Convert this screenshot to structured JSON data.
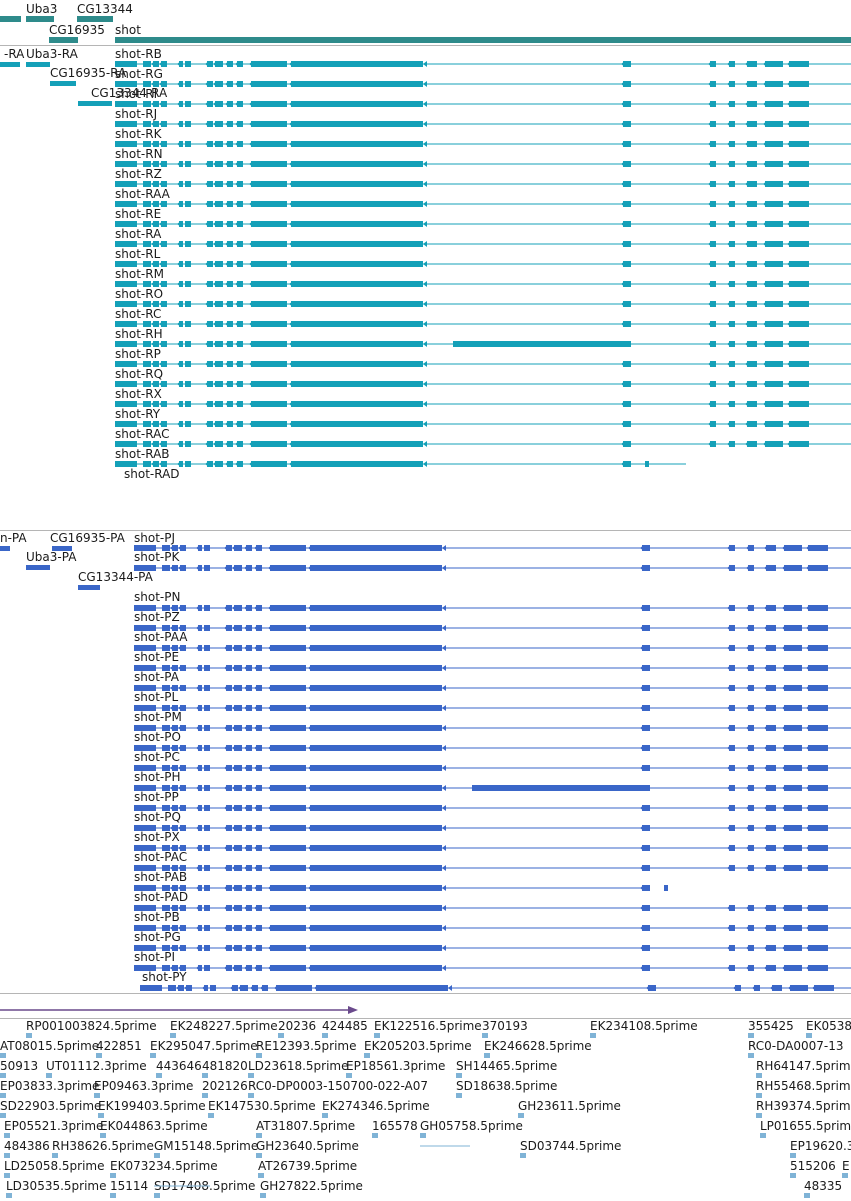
{
  "colors": {
    "gene": "#2e8b8b",
    "rna": "#14a0b8",
    "protein": "#3a66c8",
    "est": "#7fb3d6",
    "scale": "#6a4a8c"
  },
  "gene_track": {
    "genes": [
      {
        "label": ""
      },
      {
        "label": "Uba3"
      },
      {
        "label": "CG13344"
      },
      {
        "label": "CG16935"
      },
      {
        "label": "shot"
      }
    ]
  },
  "rna_track": {
    "small_labels": [
      "-RA",
      "Uba3-RA",
      "CG16935-RA",
      "CG13344-RA"
    ],
    "shot_labels": [
      "shot-RB",
      "shot-RG",
      "shot-RI",
      "shot-RJ",
      "shot-RK",
      "shot-RN",
      "shot-RZ",
      "shot-RAA",
      "shot-RE",
      "shot-RA",
      "shot-RL",
      "shot-RM",
      "shot-RO",
      "shot-RC",
      "shot-RH",
      "shot-RP",
      "shot-RQ",
      "shot-RX",
      "shot-RY",
      "shot-RAC",
      "shot-RAB",
      "shot-RAD"
    ]
  },
  "protein_track": {
    "small_labels": [
      "n-PA",
      "CG16935-PA",
      "Uba3-PA",
      "CG13344-PA"
    ],
    "shot_labels": [
      "shot-PJ",
      "shot-PK",
      "shot-PN",
      "shot-PZ",
      "shot-PAA",
      "shot-PE",
      "shot-PA",
      "shot-PL",
      "shot-PM",
      "shot-PO",
      "shot-PC",
      "shot-PH",
      "shot-PP",
      "shot-PQ",
      "shot-PX",
      "shot-PAC",
      "shot-PAB",
      "shot-PAD",
      "shot-PB",
      "shot-PG",
      "shot-PI",
      "shot-PY"
    ]
  },
  "est_track": {
    "labels": [
      "RP001003824.5prime",
      "EK248227.5prime",
      "20236",
      "424485",
      "EK122516.5prime",
      "370193",
      "EK234108.5prime",
      "355425",
      "EK0538",
      "AT08015.5prime",
      "422851",
      "EK295047.5prime",
      "RE12393.5prime",
      "EK205203.5prime",
      "EK246628.5prime",
      "RC0-DA0007-13",
      "50913",
      "UT01112.3prime",
      "443646",
      "481820",
      "LD23618.5prime",
      "EP18561.3prime",
      "SH14465.5prime",
      "RH64147.5prime",
      "EP03833.3prime",
      "EP09463.3prime",
      "202126",
      "RC0-DP0003-150700-022-A07",
      "SD18638.5prime",
      "RH55468.5prime",
      "SD22903.5prime",
      "EK199403.5prime",
      "EK147530.5prime",
      "EK274346.5prime",
      "GH23611.5prime",
      "RH39374.5prime",
      "EP05521.3prime",
      "EK044863.5prime",
      "AT31807.5prime",
      "165578",
      "GH05758.5prime",
      "LP01655.5prime",
      "484386",
      "RH38626.5prime",
      "GM15148.5prime",
      "GH23640.5prime",
      "SD03744.5prime",
      "EP19620.3",
      "LD25058.5prime",
      "EK073234.5prime",
      "AT26739.5prime",
      "515206",
      "E",
      "LD30535.5prime",
      "15114",
      "SD17408.5prime",
      "GH27822.5prime",
      "48335"
    ]
  }
}
